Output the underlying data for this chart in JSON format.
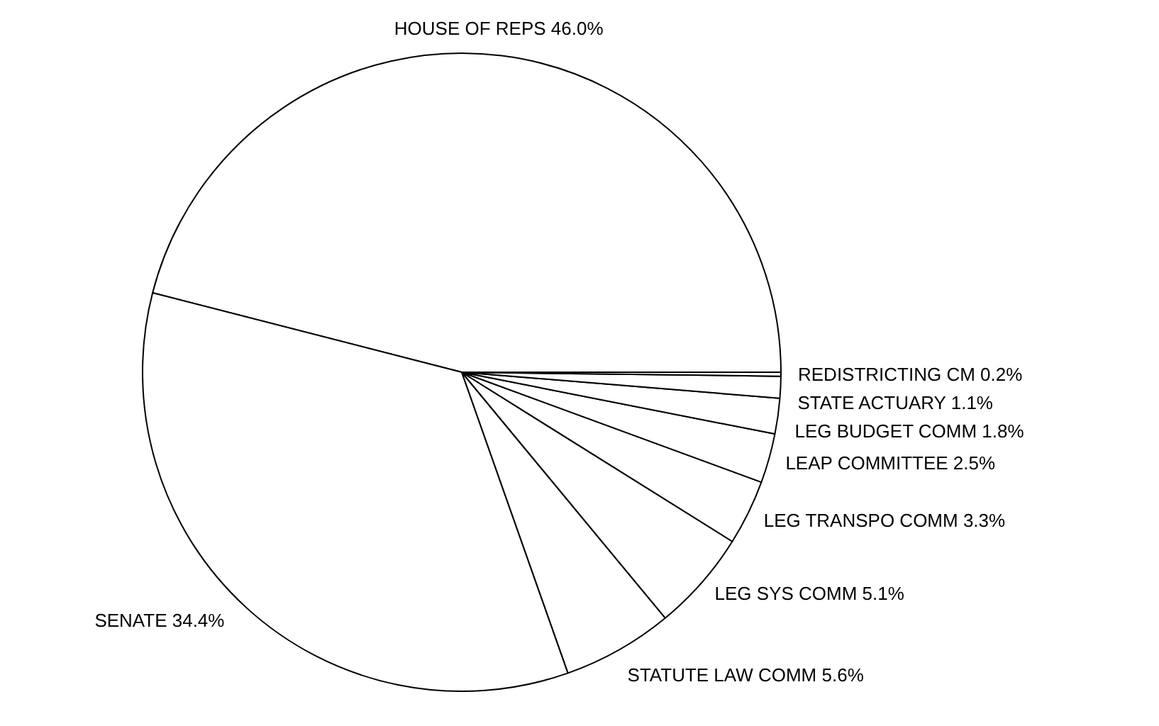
{
  "chart_data": {
    "type": "pie",
    "categories": [
      "HOUSE OF REPS",
      "SENATE",
      "STATUTE LAW COMM",
      "LEG SYS COMM",
      "LEG TRANSPO COMM",
      "LEAP COMMITTEE",
      "LEG BUDGET COMM",
      "STATE ACTUARY",
      "REDISTRICTING CM"
    ],
    "values": [
      46.0,
      34.4,
      5.6,
      5.1,
      3.3,
      2.5,
      1.8,
      1.1,
      0.2
    ],
    "value_labels": [
      "46.0%",
      "34.4%",
      "5.6%",
      "5.1%",
      "3.3%",
      "2.5%",
      "1.8%",
      "1.1%",
      "0.2%"
    ],
    "colors": [
      "#ffffff",
      "#ffffff",
      "#ffffff",
      "#ffffff",
      "#ffffff",
      "#ffffff",
      "#ffffff",
      "#ffffff",
      "#ffffff"
    ]
  }
}
